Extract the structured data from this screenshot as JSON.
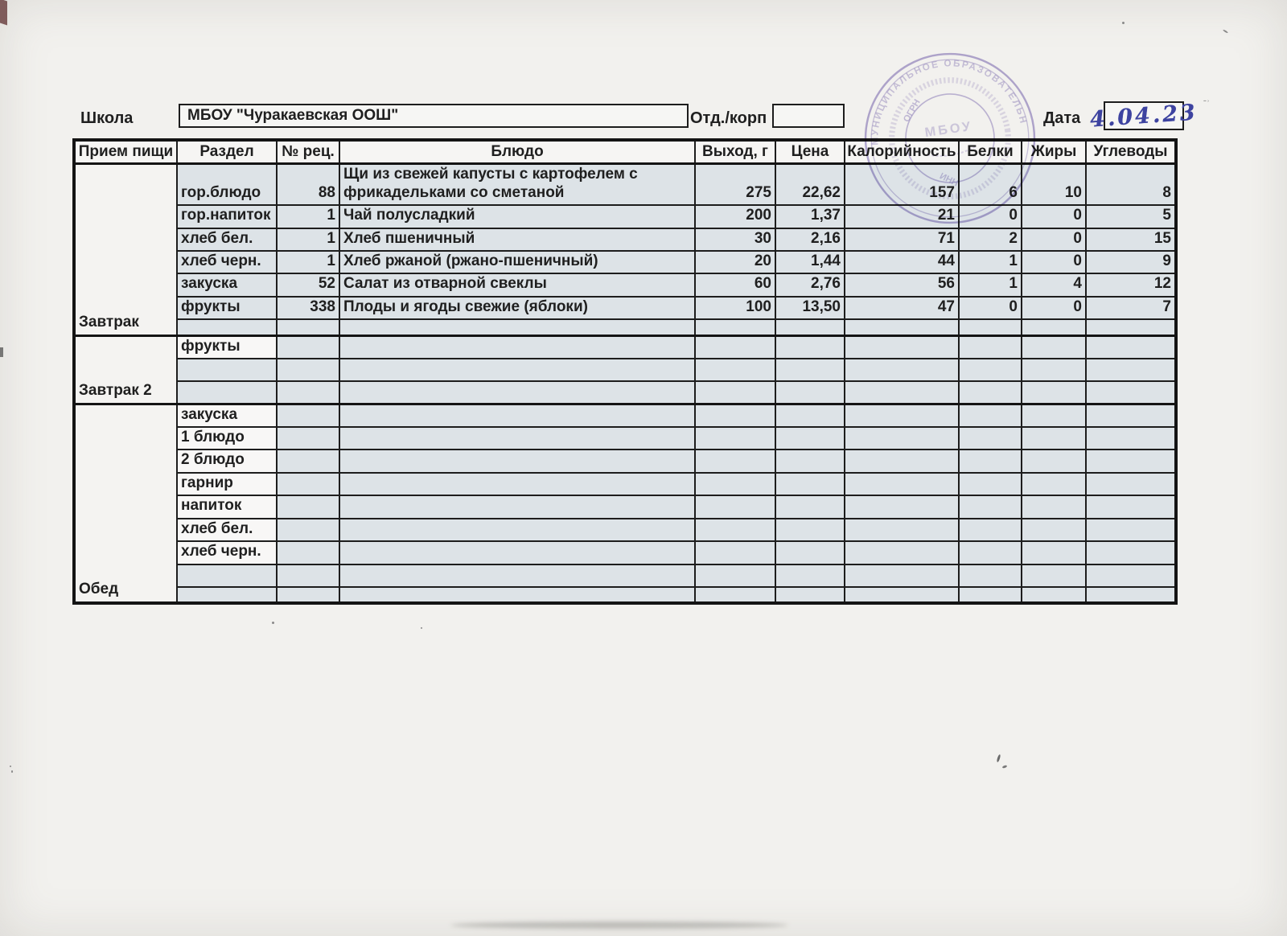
{
  "header": {
    "school_label": "Школа",
    "school_name": "МБОУ \"Чуракаевская ООШ\"",
    "dept_label": "Отд./корп",
    "dept_value": "",
    "date_label": "Дата",
    "date_value": "4.04.23"
  },
  "stamp": {
    "ring_text": "МУНИЦИПАЛЬНОЕ ОБРАЗОВАТЕЛЬНОЕ",
    "fragment_ogrn": "ОГРН",
    "fragment_inn": "ИНН",
    "center_text": "МБОУ",
    "color": "#8b7cc0"
  },
  "colors": {
    "cell_shade": "#dde3e7",
    "ink": "#1f1f1f",
    "pen_blue": "#3d43a0"
  },
  "table": {
    "columns": [
      "Прием пищи",
      "Раздел",
      "№ рец.",
      "Блюдо",
      "Выход, г",
      "Цена",
      "Калорийность",
      "Белки",
      "Жиры",
      "Углеводы"
    ],
    "blocks": [
      {
        "meal": "Завтрак",
        "rows": [
          {
            "h": "tall",
            "section": "гор.блюдо",
            "rec": "88",
            "dish": "Щи из свежей капусты с картофелем с фрикадельками со сметаной",
            "out": "275",
            "price": "22,62",
            "cal": "157",
            "protein": "6",
            "fat": "10",
            "carbs": "8"
          },
          {
            "section": "гор.напиток",
            "rec": "1",
            "dish": "Чай полусладкий",
            "out": "200",
            "price": "1,37",
            "cal": "21",
            "protein": "0",
            "fat": "0",
            "carbs": "5"
          },
          {
            "section": "хлеб бел.",
            "rec": "1",
            "dish": "Хлеб пшеничный",
            "out": "30",
            "price": "2,16",
            "cal": "71",
            "protein": "2",
            "fat": "0",
            "carbs": "15"
          },
          {
            "section": "хлеб черн.",
            "rec": "1",
            "dish": "Хлеб ржаной (ржано-пшеничный)",
            "out": "20",
            "price": "1,44",
            "cal": "44",
            "protein": "1",
            "fat": "0",
            "carbs": "9"
          },
          {
            "section": "закуска",
            "rec": "52",
            "dish": "Салат из отварной свеклы",
            "out": "60",
            "price": "2,76",
            "cal": "56",
            "protein": "1",
            "fat": "4",
            "carbs": "12"
          },
          {
            "section": "фрукты",
            "rec": "338",
            "dish": "Плоды и ягоды свежие (яблоки)",
            "out": "100",
            "price": "13,50",
            "cal": "47",
            "protein": "0",
            "fat": "0",
            "carbs": "7"
          },
          {
            "h": "thin"
          }
        ]
      },
      {
        "meal": "Завтрак 2",
        "rows": [
          {
            "section": "фрукты",
            "sw": true
          },
          {},
          {}
        ]
      },
      {
        "meal": "Обед",
        "rows": [
          {
            "section": "закуска",
            "sw": true
          },
          {
            "section": "1 блюдо",
            "sw": true
          },
          {
            "section": "2 блюдо",
            "sw": true
          },
          {
            "section": "гарнир",
            "sw": true
          },
          {
            "section": "напиток",
            "sw": true
          },
          {
            "section": "хлеб бел.",
            "sw": true
          },
          {
            "section": "хлеб черн.",
            "sw": true
          },
          {},
          {
            "h": "thin"
          }
        ]
      }
    ]
  }
}
